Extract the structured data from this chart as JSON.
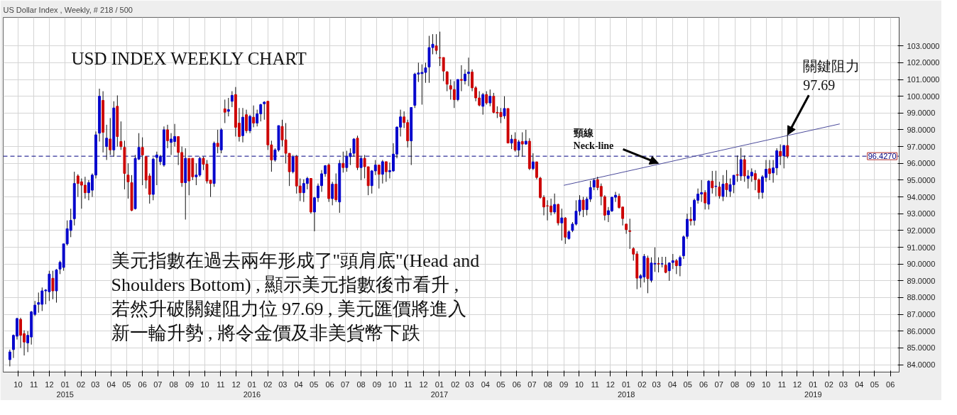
{
  "chart_data": {
    "type": "candlestick",
    "title": "USD INDEX WEEKLY CHART",
    "subtitle": "US Dollar Index , Weekly, # 218 / 500",
    "xlim": [
      "2014-09-02",
      "2019-06-18"
    ],
    "ylim": [
      83.56,
      104.7
    ],
    "xticks": [
      {
        "value": "2014-10",
        "label": "10"
      },
      {
        "value": "2014-11",
        "label": "11"
      },
      {
        "value": "2014-12",
        "label": "12"
      },
      {
        "value": "2015-01",
        "label": "01\n2015"
      },
      {
        "value": "2015-02",
        "label": "02"
      },
      {
        "value": "2015-03",
        "label": "03"
      },
      {
        "value": "2015-04",
        "label": "04"
      },
      {
        "value": "2015-05",
        "label": "05"
      },
      {
        "value": "2015-06",
        "label": "06"
      },
      {
        "value": "2015-07",
        "label": "07"
      },
      {
        "value": "2015-08",
        "label": "08"
      },
      {
        "value": "2015-09",
        "label": "09"
      },
      {
        "value": "2015-10",
        "label": "10"
      },
      {
        "value": "2015-11",
        "label": "11"
      },
      {
        "value": "2015-12",
        "label": "12"
      },
      {
        "value": "2016-01",
        "label": "01\n2016"
      },
      {
        "value": "2016-02",
        "label": "02"
      },
      {
        "value": "2016-03",
        "label": "03"
      },
      {
        "value": "2016-04",
        "label": "04"
      },
      {
        "value": "2016-05",
        "label": "05"
      },
      {
        "value": "2016-06",
        "label": "06"
      },
      {
        "value": "2016-07",
        "label": "07"
      },
      {
        "value": "2016-08",
        "label": "08"
      },
      {
        "value": "2016-09",
        "label": "09"
      },
      {
        "value": "2016-10",
        "label": "10"
      },
      {
        "value": "2016-11",
        "label": "11"
      },
      {
        "value": "2016-12",
        "label": "12"
      },
      {
        "value": "2017-01",
        "label": "01\n2017"
      },
      {
        "value": "2017-02",
        "label": "02"
      },
      {
        "value": "2017-03",
        "label": "03"
      },
      {
        "value": "2017-04",
        "label": "04"
      },
      {
        "value": "2017-05",
        "label": "05"
      },
      {
        "value": "2017-06",
        "label": "06"
      },
      {
        "value": "2017-07",
        "label": "07"
      },
      {
        "value": "2017-08",
        "label": "08"
      },
      {
        "value": "2017-09",
        "label": "09"
      },
      {
        "value": "2017-10",
        "label": "10"
      },
      {
        "value": "2017-11",
        "label": "11"
      },
      {
        "value": "2017-12",
        "label": "12"
      },
      {
        "value": "2018-01",
        "label": "01\n2018"
      },
      {
        "value": "2018-02",
        "label": "02"
      },
      {
        "value": "2018-03",
        "label": "03"
      },
      {
        "value": "2018-04",
        "label": "04"
      },
      {
        "value": "2018-05",
        "label": "05"
      },
      {
        "value": "2018-06",
        "label": "06"
      },
      {
        "value": "2018-07",
        "label": "07"
      },
      {
        "value": "2018-08",
        "label": "08"
      },
      {
        "value": "2018-09",
        "label": "09"
      },
      {
        "value": "2018-10",
        "label": "10"
      },
      {
        "value": "2018-11",
        "label": "11"
      },
      {
        "value": "2018-12",
        "label": "12"
      },
      {
        "value": "2019-01",
        "label": "01\n2019"
      },
      {
        "value": "2019-02",
        "label": "02"
      },
      {
        "value": "2019-03",
        "label": "03"
      },
      {
        "value": "2019-04",
        "label": "04"
      },
      {
        "value": "2019-05",
        "label": "05"
      },
      {
        "value": "2019-06",
        "label": "06"
      }
    ],
    "yticks": [
      {
        "value": 84,
        "label": "84.0000"
      },
      {
        "value": 85,
        "label": "85.0000"
      },
      {
        "value": 86,
        "label": "86.0000"
      },
      {
        "value": 87,
        "label": "87.0000"
      },
      {
        "value": 88,
        "label": "88.0000"
      },
      {
        "value": 89,
        "label": "89.0000"
      },
      {
        "value": 90,
        "label": "90.0000"
      },
      {
        "value": 91,
        "label": "91.0000"
      },
      {
        "value": 92,
        "label": "92.0000"
      },
      {
        "value": 93,
        "label": "93.0000"
      },
      {
        "value": 94,
        "label": "94.0000"
      },
      {
        "value": 95,
        "label": "95.0000"
      },
      {
        "value": 96,
        "label": "96.0000"
      },
      {
        "value": 97,
        "label": "97.0000"
      },
      {
        "value": 98,
        "label": "98.0000"
      },
      {
        "value": 99,
        "label": "99.0000"
      },
      {
        "value": 100,
        "label": "100.0000"
      },
      {
        "value": 101,
        "label": "101.0000"
      },
      {
        "value": 102,
        "label": "102.0000"
      },
      {
        "value": 103,
        "label": "103.0000"
      }
    ],
    "grid": true,
    "ref_lines": [
      {
        "axis": "y",
        "value": 96.427,
        "label": "96.4270",
        "color": "#000080",
        "line_style": "dashed"
      }
    ],
    "annotations": [
      {
        "text": "頸線\nNeck-line",
        "x": "2018-03-05",
        "y": 96.0
      },
      {
        "text": "關鍵阻力\n97.69",
        "x": "2018-11-12",
        "y": 97.69
      },
      "美元指數在過去兩年形成了\"頭肩底\"(Head and",
      "Shoulders Bottom) , 顯示美元指數後市看升 ,",
      "若然升破關鍵阻力位 97.69 , 美元匯價將進入",
      "新一輪升勢 , 將令金價及非美貨幣下跌"
    ],
    "series": [
      {
        "x": [
          "2014-09-15",
          "2014-09-22",
          "2014-09-29",
          "2014-10-06",
          "2014-10-13",
          "2014-10-20",
          "2014-10-27",
          "2014-11-03",
          "2014-11-10",
          "2014-11-17",
          "2014-11-24",
          "2014-12-01",
          "2014-12-08",
          "2014-12-15",
          "2014-12-22",
          "2014-12-29",
          "2015-01-05",
          "2015-01-12",
          "2015-01-19",
          "2015-01-26",
          "2015-02-02",
          "2015-02-09",
          "2015-02-16",
          "2015-02-23",
          "2015-03-02",
          "2015-03-09",
          "2015-03-16",
          "2015-03-23",
          "2015-03-30",
          "2015-04-06",
          "2015-04-13",
          "2015-04-20",
          "2015-04-27",
          "2015-05-04",
          "2015-05-11",
          "2015-05-18",
          "2015-05-25",
          "2015-06-01",
          "2015-06-08",
          "2015-06-15",
          "2015-06-22",
          "2015-06-29",
          "2015-07-06",
          "2015-07-13",
          "2015-07-20",
          "2015-07-27",
          "2015-08-03",
          "2015-08-10",
          "2015-08-17",
          "2015-08-24",
          "2015-08-31",
          "2015-09-07",
          "2015-09-14",
          "2015-09-21",
          "2015-09-28",
          "2015-10-05",
          "2015-10-12",
          "2015-10-19",
          "2015-10-26",
          "2015-11-02",
          "2015-11-09",
          "2015-11-16",
          "2015-11-23",
          "2015-11-30",
          "2015-12-07",
          "2015-12-14",
          "2015-12-21",
          "2015-12-28",
          "2016-01-04",
          "2016-01-11",
          "2016-01-18",
          "2016-01-25",
          "2016-02-01",
          "2016-02-08",
          "2016-02-15",
          "2016-02-22",
          "2016-02-29",
          "2016-03-07",
          "2016-03-14",
          "2016-03-21",
          "2016-03-28",
          "2016-04-04",
          "2016-04-11",
          "2016-04-18",
          "2016-04-25",
          "2016-05-02",
          "2016-05-09",
          "2016-05-16",
          "2016-05-23",
          "2016-05-30",
          "2016-06-06",
          "2016-06-13",
          "2016-06-20",
          "2016-06-27",
          "2016-07-04",
          "2016-07-11",
          "2016-07-18",
          "2016-07-25",
          "2016-08-01",
          "2016-08-08",
          "2016-08-15",
          "2016-08-22",
          "2016-08-29",
          "2016-09-05",
          "2016-09-12",
          "2016-09-19",
          "2016-09-26",
          "2016-10-03",
          "2016-10-10",
          "2016-10-17",
          "2016-10-24",
          "2016-10-31",
          "2016-11-07",
          "2016-11-14",
          "2016-11-21",
          "2016-11-28",
          "2016-12-05",
          "2016-12-12",
          "2016-12-19",
          "2016-12-26",
          "2017-01-02",
          "2017-01-09",
          "2017-01-16",
          "2017-01-23",
          "2017-01-30",
          "2017-02-06",
          "2017-02-13",
          "2017-02-20",
          "2017-02-27",
          "2017-03-06",
          "2017-03-13",
          "2017-03-20",
          "2017-03-27",
          "2017-04-03",
          "2017-04-10",
          "2017-04-17",
          "2017-04-24",
          "2017-05-01",
          "2017-05-08",
          "2017-05-15",
          "2017-05-22",
          "2017-05-29",
          "2017-06-05",
          "2017-06-12",
          "2017-06-19",
          "2017-06-26",
          "2017-07-03",
          "2017-07-10",
          "2017-07-17",
          "2017-07-24",
          "2017-07-31",
          "2017-08-07",
          "2017-08-14",
          "2017-08-21",
          "2017-08-28",
          "2017-09-04",
          "2017-09-11",
          "2017-09-18",
          "2017-09-25",
          "2017-10-02",
          "2017-10-09",
          "2017-10-16",
          "2017-10-23",
          "2017-10-30",
          "2017-11-06",
          "2017-11-13",
          "2017-11-20",
          "2017-11-27",
          "2017-12-04",
          "2017-12-11",
          "2017-12-18",
          "2017-12-25",
          "2018-01-01",
          "2018-01-08",
          "2018-01-15",
          "2018-01-22",
          "2018-01-29",
          "2018-02-05",
          "2018-02-12",
          "2018-02-19",
          "2018-02-26",
          "2018-03-05",
          "2018-03-12",
          "2018-03-19",
          "2018-03-26",
          "2018-04-02",
          "2018-04-09",
          "2018-04-16",
          "2018-04-23",
          "2018-04-30",
          "2018-05-07",
          "2018-05-14",
          "2018-05-21",
          "2018-05-28",
          "2018-06-04",
          "2018-06-11",
          "2018-06-18",
          "2018-06-25",
          "2018-07-02",
          "2018-07-09",
          "2018-07-16",
          "2018-07-23",
          "2018-07-30",
          "2018-08-06",
          "2018-08-13",
          "2018-08-20",
          "2018-08-27",
          "2018-09-03",
          "2018-09-10",
          "2018-09-17",
          "2018-09-24",
          "2018-10-01",
          "2018-10-08",
          "2018-10-15",
          "2018-10-22",
          "2018-10-29",
          "2018-11-05",
          "2018-11-12"
        ],
        "ohlc": [
          [
            84.3,
            84.9,
            83.9,
            84.76
          ],
          [
            84.9,
            85.8,
            84.4,
            85.75
          ],
          [
            85.7,
            86.8,
            85.5,
            86.75
          ],
          [
            86.7,
            86.8,
            85.0,
            85.75
          ],
          [
            85.85,
            86.05,
            84.55,
            85.35
          ],
          [
            85.3,
            86.0,
            84.75,
            85.75
          ],
          [
            85.65,
            87.2,
            85.2,
            87.15
          ],
          [
            87.0,
            87.8,
            86.9,
            87.55
          ],
          [
            87.6,
            88.3,
            87.1,
            87.7
          ],
          [
            87.6,
            88.6,
            87.2,
            88.4
          ],
          [
            88.4,
            88.5,
            87.6,
            88.45
          ],
          [
            88.35,
            89.6,
            87.8,
            89.4
          ],
          [
            89.15,
            89.6,
            87.9,
            88.4
          ],
          [
            88.4,
            89.7,
            87.7,
            89.65
          ],
          [
            89.7,
            90.2,
            89.4,
            90.1
          ],
          [
            89.8,
            91.2,
            89.6,
            91.2
          ],
          [
            91.2,
            92.6,
            91.1,
            92.1
          ],
          [
            92.0,
            93.3,
            91.6,
            92.6
          ],
          [
            92.7,
            95.5,
            92.3,
            94.8
          ],
          [
            95.25,
            95.35,
            94.0,
            94.8
          ],
          [
            94.9,
            95.1,
            93.3,
            94.7
          ],
          [
            94.7,
            95.2,
            93.9,
            94.25
          ],
          [
            94.25,
            95.0,
            93.8,
            94.85
          ],
          [
            94.4,
            95.4,
            94.0,
            95.3
          ],
          [
            95.3,
            97.9,
            95.1,
            97.7
          ],
          [
            97.8,
            100.45,
            97.3,
            100.0
          ],
          [
            99.75,
            100.3,
            96.65,
            97.85
          ],
          [
            97.0,
            98.3,
            96.2,
            97.5
          ],
          [
            97.45,
            98.7,
            96.5,
            96.8
          ],
          [
            96.8,
            99.7,
            96.4,
            99.3
          ],
          [
            99.4,
            100.05,
            97.0,
            97.6
          ],
          [
            97.3,
            98.5,
            96.8,
            97.0
          ],
          [
            96.95,
            97.35,
            94.45,
            95.4
          ],
          [
            95.3,
            96.0,
            93.9,
            94.9
          ],
          [
            94.85,
            95.3,
            93.15,
            93.2
          ],
          [
            93.3,
            96.5,
            93.25,
            96.3
          ],
          [
            96.25,
            97.8,
            96.2,
            96.95
          ],
          [
            96.95,
            97.55,
            94.7,
            96.5
          ],
          [
            96.4,
            96.4,
            94.5,
            95.0
          ],
          [
            95.25,
            95.4,
            93.6,
            94.15
          ],
          [
            94.15,
            96.35,
            93.8,
            96.25
          ],
          [
            96.35,
            96.7,
            94.7,
            96.5
          ],
          [
            96.1,
            96.5,
            95.9,
            96.4
          ],
          [
            95.9,
            98.2,
            95.8,
            98.0
          ],
          [
            98.0,
            98.3,
            96.9,
            97.35
          ],
          [
            97.25,
            97.8,
            96.5,
            97.45
          ],
          [
            97.3,
            98.35,
            97.0,
            97.6
          ],
          [
            97.6,
            97.6,
            95.9,
            96.65
          ],
          [
            96.65,
            97.0,
            94.6,
            94.85
          ],
          [
            94.85,
            96.9,
            92.65,
            96.3
          ],
          [
            96.3,
            96.3,
            94.1,
            94.95
          ],
          [
            96.3,
            96.3,
            95.0,
            95.2
          ],
          [
            95.2,
            96.0,
            94.7,
            95.3
          ],
          [
            95.3,
            96.4,
            95.2,
            96.3
          ],
          [
            96.3,
            96.4,
            95.6,
            95.95
          ],
          [
            95.95,
            96.2,
            94.8,
            94.95
          ],
          [
            95.0,
            95.0,
            94.0,
            94.8
          ],
          [
            94.8,
            97.3,
            94.6,
            97.2
          ],
          [
            97.2,
            98.0,
            96.6,
            97.0
          ],
          [
            96.8,
            98.1,
            96.6,
            98.0
          ],
          [
            99.25,
            99.8,
            98.4,
            99.05
          ],
          [
            99.1,
            99.9,
            98.8,
            99.2
          ],
          [
            99.7,
            100.3,
            99.35,
            100.05
          ],
          [
            100.1,
            100.55,
            97.6,
            98.15
          ],
          [
            98.4,
            99.3,
            97.3,
            97.6
          ],
          [
            97.65,
            99.3,
            97.25,
            98.75
          ],
          [
            98.9,
            99.2,
            97.8,
            97.95
          ],
          [
            97.95,
            98.9,
            97.8,
            98.8
          ],
          [
            98.75,
            99.45,
            98.15,
            98.4
          ],
          [
            98.4,
            99.2,
            98.2,
            98.95
          ],
          [
            98.95,
            99.55,
            98.5,
            99.5
          ],
          [
            99.55,
            99.7,
            98.6,
            99.65
          ],
          [
            99.7,
            99.7,
            96.8,
            97.1
          ],
          [
            97.1,
            97.35,
            95.5,
            96.2
          ],
          [
            96.2,
            96.9,
            96.1,
            96.8
          ],
          [
            96.8,
            98.25,
            96.7,
            98.25
          ],
          [
            98.2,
            98.6,
            97.0,
            97.4
          ],
          [
            97.4,
            98.4,
            96.0,
            96.6
          ],
          [
            96.6,
            96.6,
            94.65,
            95.5
          ],
          [
            95.5,
            96.5,
            95.4,
            96.4
          ],
          [
            96.4,
            96.5,
            94.2,
            94.65
          ],
          [
            94.65,
            95.1,
            93.75,
            94.25
          ],
          [
            94.25,
            95.05,
            93.7,
            94.8
          ],
          [
            94.8,
            95.2,
            94.45,
            95.1
          ],
          [
            95.1,
            95.1,
            93.0,
            93.1
          ],
          [
            93.1,
            94.0,
            91.95,
            93.95
          ],
          [
            93.95,
            94.8,
            93.7,
            94.65
          ],
          [
            94.67,
            95.6,
            94.3,
            95.38
          ],
          [
            95.38,
            95.9,
            95.2,
            95.86
          ],
          [
            95.9,
            96.0,
            93.7,
            93.9
          ],
          [
            93.9,
            94.9,
            93.5,
            94.76
          ],
          [
            94.76,
            95.4,
            93.7,
            93.83
          ],
          [
            93.7,
            96.2,
            93.05,
            96.0
          ],
          [
            96.0,
            96.7,
            95.45,
            95.75
          ],
          [
            95.75,
            96.75,
            95.5,
            96.4
          ],
          [
            96.4,
            96.9,
            95.9,
            96.6
          ],
          [
            96.6,
            97.5,
            96.4,
            97.45
          ],
          [
            97.5,
            97.65,
            95.6,
            95.75
          ],
          [
            95.75,
            96.4,
            95.0,
            96.3
          ],
          [
            96.3,
            96.5,
            95.1,
            95.8
          ],
          [
            95.8,
            95.8,
            94.1,
            94.67
          ],
          [
            94.67,
            95.6,
            94.2,
            95.55
          ],
          [
            95.55,
            96.2,
            95.3,
            95.9
          ],
          [
            95.9,
            95.9,
            94.5,
            95.35
          ],
          [
            95.35,
            96.2,
            94.8,
            96.1
          ],
          [
            96.1,
            96.1,
            94.9,
            95.5
          ],
          [
            95.5,
            96.05,
            95.1,
            95.57
          ],
          [
            95.55,
            97.2,
            95.5,
            96.55
          ],
          [
            96.55,
            98.2,
            96.3,
            98.16
          ],
          [
            98.16,
            99.2,
            97.6,
            98.77
          ],
          [
            98.77,
            99.1,
            98.1,
            98.43
          ],
          [
            98.43,
            98.6,
            96.95,
            97.34
          ],
          [
            97.34,
            99.33,
            95.9,
            99.33
          ],
          [
            99.46,
            101.4,
            99.3,
            101.32
          ],
          [
            101.32,
            102.0,
            100.85,
            101.39
          ],
          [
            101.35,
            101.9,
            99.5,
            101.42
          ],
          [
            101.42,
            102.0,
            100.8,
            101.69
          ],
          [
            101.74,
            103.6,
            100.8,
            102.9
          ],
          [
            102.9,
            103.7,
            102.5,
            103.1
          ],
          [
            103.0,
            103.7,
            102.5,
            102.73
          ],
          [
            102.3,
            103.85,
            101.8,
            102.28
          ],
          [
            102.31,
            102.31,
            100.9,
            101.5
          ],
          [
            101.45,
            101.5,
            100.3,
            100.72
          ],
          [
            100.63,
            101.0,
            99.8,
            100.42
          ],
          [
            100.4,
            100.9,
            99.3,
            99.8
          ],
          [
            99.8,
            101.0,
            99.7,
            101.0
          ],
          [
            101.0,
            101.85,
            100.3,
            100.95
          ],
          [
            100.92,
            101.6,
            100.7,
            101.32
          ],
          [
            101.35,
            102.3,
            100.6,
            101.44
          ],
          [
            101.44,
            101.6,
            100.3,
            100.5
          ],
          [
            100.5,
            100.6,
            99.7,
            99.9
          ],
          [
            99.9,
            100.3,
            99.4,
            99.47
          ],
          [
            99.4,
            100.2,
            98.9,
            100.1
          ],
          [
            100.1,
            100.3,
            99.5,
            99.6
          ],
          [
            99.6,
            100.4,
            99.4,
            100.0
          ],
          [
            100.0,
            100.2,
            98.98,
            99.04
          ],
          [
            99.04,
            99.4,
            98.7,
            99.0
          ],
          [
            99.04,
            99.3,
            98.4,
            98.78
          ],
          [
            98.83,
            100.0,
            98.65,
            99.27
          ],
          [
            99.27,
            99.27,
            97.2,
            97.21
          ],
          [
            97.21,
            97.7,
            96.85,
            97.44
          ],
          [
            97.44,
            97.85,
            96.7,
            96.79
          ],
          [
            96.79,
            97.4,
            96.4,
            97.28
          ],
          [
            97.3,
            97.85,
            96.4,
            97.15
          ],
          [
            97.15,
            98.0,
            97.1,
            97.32
          ],
          [
            97.32,
            97.5,
            95.6,
            95.69
          ],
          [
            95.69,
            96.6,
            95.6,
            96.09
          ],
          [
            96.09,
            96.1,
            95.05,
            95.16
          ],
          [
            95.12,
            95.2,
            93.9,
            93.97
          ],
          [
            93.97,
            94.1,
            92.9,
            93.4
          ],
          [
            93.47,
            93.8,
            92.6,
            93.46
          ],
          [
            93.46,
            93.9,
            92.9,
            93.1
          ],
          [
            93.1,
            94.2,
            92.98,
            93.55
          ],
          [
            93.55,
            93.6,
            92.3,
            92.45
          ],
          [
            92.45,
            93.3,
            91.4,
            92.75
          ],
          [
            92.74,
            92.8,
            91.2,
            91.6
          ],
          [
            91.52,
            92.0,
            91.45,
            91.92
          ],
          [
            92.0,
            92.5,
            91.9,
            92.38
          ],
          [
            92.38,
            93.8,
            92.3,
            93.15
          ],
          [
            93.15,
            94.1,
            92.9,
            93.81
          ],
          [
            93.81,
            94.0,
            92.8,
            93.24
          ],
          [
            93.24,
            94.0,
            92.9,
            93.87
          ],
          [
            93.87,
            94.96,
            93.7,
            94.56
          ],
          [
            94.59,
            95.1,
            94.4,
            94.99
          ],
          [
            95.03,
            95.2,
            94.4,
            94.56
          ],
          [
            94.63,
            94.8,
            93.5,
            94.04
          ],
          [
            94.01,
            94.1,
            92.6,
            92.91
          ],
          [
            92.94,
            93.4,
            92.5,
            93.18
          ],
          [
            93.17,
            94.0,
            93.1,
            93.98
          ],
          [
            93.98,
            94.3,
            93.7,
            94.1
          ],
          [
            94.04,
            94.2,
            93.3,
            93.37
          ],
          [
            93.4,
            93.4,
            92.3,
            92.71
          ],
          [
            92.38,
            92.4,
            91.8,
            92.05
          ],
          [
            91.98,
            92.7,
            90.9,
            91.94
          ],
          [
            90.92,
            91.0,
            90.2,
            90.59
          ],
          [
            90.6,
            90.76,
            88.5,
            89.16
          ],
          [
            89.16,
            89.4,
            88.6,
            89.3
          ],
          [
            89.23,
            90.6,
            88.9,
            90.46
          ],
          [
            90.35,
            90.5,
            88.26,
            89.13
          ],
          [
            89.03,
            90.4,
            88.9,
            90.06
          ],
          [
            90.0,
            90.99,
            89.53,
            90.04
          ],
          [
            90.03,
            90.4,
            89.5,
            90.0
          ],
          [
            90.0,
            90.43,
            89.8,
            90.02
          ],
          [
            89.93,
            90.43,
            89.45,
            89.5
          ],
          [
            89.6,
            90.1,
            89.0,
            90.06
          ],
          [
            90.09,
            90.6,
            89.7,
            90.2
          ],
          [
            90.2,
            90.3,
            89.4,
            89.9
          ],
          [
            89.9,
            90.5,
            89.27,
            90.39
          ],
          [
            90.49,
            91.7,
            90.3,
            91.62
          ],
          [
            91.65,
            93.0,
            91.5,
            92.67
          ],
          [
            92.67,
            93.4,
            92.3,
            92.58
          ],
          [
            92.6,
            93.9,
            92.3,
            93.8
          ],
          [
            93.8,
            94.5,
            93.6,
            94.17
          ],
          [
            94.17,
            95.0,
            93.7,
            94.26
          ],
          [
            94.26,
            94.4,
            93.25,
            93.64
          ],
          [
            93.57,
            95.0,
            93.25,
            94.94
          ],
          [
            94.94,
            95.55,
            94.2,
            94.54
          ],
          [
            94.62,
            95.56,
            94.04,
            94.64
          ],
          [
            94.59,
            94.9,
            93.9,
            94.06
          ],
          [
            94.03,
            95.3,
            93.75,
            94.76
          ],
          [
            94.8,
            95.6,
            94.0,
            94.43
          ],
          [
            94.33,
            95.1,
            94.0,
            94.73
          ],
          [
            94.73,
            95.3,
            94.22,
            95.29
          ],
          [
            95.33,
            96.47,
            94.9,
            95.29
          ],
          [
            95.25,
            96.92,
            94.96,
            96.22
          ],
          [
            96.22,
            96.47,
            94.9,
            95.25
          ],
          [
            95.1,
            95.6,
            94.5,
            95.25
          ],
          [
            95.25,
            95.7,
            94.9,
            95.47
          ],
          [
            95.39,
            95.6,
            94.4,
            95.03
          ],
          [
            95.02,
            95.1,
            93.87,
            94.27
          ],
          [
            94.27,
            95.3,
            93.9,
            95.2
          ],
          [
            95.16,
            96.2,
            94.9,
            95.65
          ],
          [
            95.68,
            96.2,
            95.0,
            95.39
          ],
          [
            95.43,
            96.2,
            94.85,
            95.73
          ],
          [
            95.73,
            96.9,
            95.3,
            96.75
          ],
          [
            96.71,
            97.13,
            95.9,
            96.45
          ],
          [
            96.45,
            97.1,
            95.7,
            97.06
          ],
          [
            97.06,
            97.69,
            96.3,
            96.43
          ]
        ],
        "colors": [
          "#0000cc",
          "#0000cc",
          "#0000cc",
          "#cc0000",
          "#cc0000",
          "#0000cc",
          "#0000cc",
          "#0000cc",
          "#0000cc",
          "#0000cc",
          "#0000cc",
          "#0000cc",
          "#cc0000",
          "#0000cc",
          "#0000cc",
          "#0000cc",
          "#0000cc",
          "#0000cc",
          "#0000cc",
          "#cc0000",
          "#cc0000",
          "#cc0000",
          "#0000cc",
          "#0000cc",
          "#0000cc",
          "#0000cc",
          "#cc0000",
          "#0000cc",
          "#cc0000",
          "#0000cc",
          "#cc0000",
          "#cc0000",
          "#cc0000",
          "#cc0000",
          "#cc0000",
          "#0000cc",
          "#0000cc",
          "#cc0000",
          "#cc0000",
          "#cc0000",
          "#0000cc",
          "#0000cc",
          "#0000cc",
          "#0000cc",
          "#cc0000",
          "#0000cc",
          "#0000cc",
          "#cc0000",
          "#cc0000",
          "#0000cc",
          "#cc0000",
          "#cc0000",
          "#0000cc",
          "#0000cc",
          "#cc0000",
          "#cc0000",
          "#cc0000",
          "#0000cc",
          "#cc0000",
          "#0000cc",
          "#cc0000",
          "#0000cc",
          "#0000cc",
          "#cc0000",
          "#cc0000",
          "#0000cc",
          "#cc0000",
          "#0000cc",
          "#cc0000",
          "#0000cc",
          "#0000cc",
          "#0000cc",
          "#cc0000",
          "#cc0000",
          "#0000cc",
          "#0000cc",
          "#cc0000",
          "#cc0000",
          "#cc0000",
          "#0000cc",
          "#cc0000",
          "#cc0000",
          "#0000cc",
          "#0000cc",
          "#cc0000",
          "#0000cc",
          "#0000cc",
          "#0000cc",
          "#0000cc",
          "#cc0000",
          "#0000cc",
          "#cc0000",
          "#0000cc",
          "#cc0000",
          "#0000cc",
          "#0000cc",
          "#0000cc",
          "#cc0000",
          "#0000cc",
          "#cc0000",
          "#cc0000",
          "#0000cc",
          "#0000cc",
          "#cc0000",
          "#0000cc",
          "#cc0000",
          "#0000cc",
          "#0000cc",
          "#0000cc",
          "#0000cc",
          "#cc0000",
          "#cc0000",
          "#0000cc",
          "#0000cc",
          "#0000cc",
          "#0000cc",
          "#0000cc",
          "#0000cc",
          "#0000cc",
          "#cc0000",
          "#cc0000",
          "#cc0000",
          "#cc0000",
          "#cc0000",
          "#cc0000",
          "#0000cc",
          "#cc0000",
          "#0000cc",
          "#0000cc",
          "#cc0000",
          "#cc0000",
          "#cc0000",
          "#0000cc",
          "#cc0000",
          "#0000cc",
          "#cc0000",
          "#cc0000",
          "#cc0000",
          "#0000cc",
          "#cc0000",
          "#0000cc",
          "#cc0000",
          "#0000cc",
          "#cc0000",
          "#0000cc",
          "#cc0000",
          "#0000cc",
          "#cc0000",
          "#cc0000",
          "#cc0000",
          "#cc0000",
          "#cc0000",
          "#0000cc",
          "#cc0000",
          "#0000cc",
          "#cc0000",
          "#0000cc",
          "#0000cc",
          "#0000cc",
          "#0000cc",
          "#cc0000",
          "#0000cc",
          "#0000cc",
          "#0000cc",
          "#cc0000",
          "#cc0000",
          "#cc0000",
          "#0000cc",
          "#0000cc",
          "#0000cc",
          "#cc0000",
          "#cc0000",
          "#cc0000",
          "#cc0000",
          "#cc0000",
          "#cc0000",
          "#0000cc",
          "#0000cc",
          "#cc0000",
          "#0000cc",
          "#0000cc",
          "#cc0000",
          "#0000cc",
          "#cc0000",
          "#0000cc",
          "#0000cc",
          "#cc0000",
          "#0000cc",
          "#0000cc",
          "#0000cc",
          "#cc0000",
          "#0000cc",
          "#0000cc",
          "#0000cc",
          "#cc0000",
          "#0000cc",
          "#cc0000",
          "#0000cc",
          "#cc0000",
          "#0000cc",
          "#cc0000",
          "#0000cc",
          "#0000cc",
          "#cc0000",
          "#0000cc",
          "#cc0000",
          "#0000cc",
          "#0000cc",
          "#cc0000",
          "#cc0000",
          "#0000cc",
          "#0000cc",
          "#cc0000",
          "#0000cc",
          "#0000cc",
          "#cc0000",
          "#0000cc",
          "#cc0000"
        ]
      },
      {
        "type": "line",
        "x": [
          "2017-09-01",
          "2019-02-22"
        ],
        "values": [
          94.69,
          98.35
        ],
        "color": "#4a4a9a"
      }
    ]
  }
}
